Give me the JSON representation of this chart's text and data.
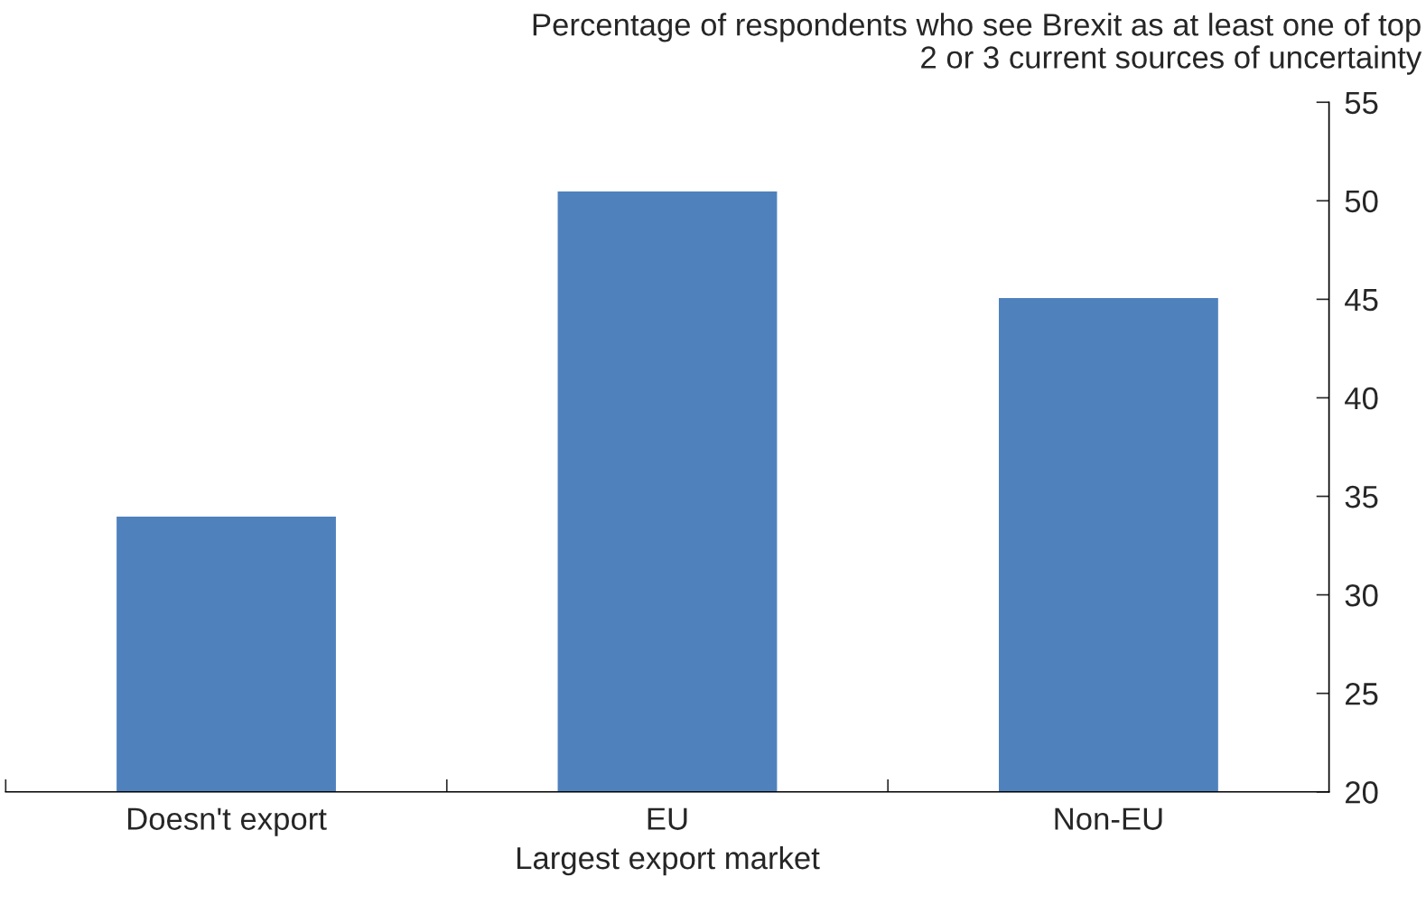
{
  "chart_data": {
    "type": "bar",
    "ylabel": "Percentage of respondents who see Brexit as at least one of top\n2 or 3 current sources of uncertainty",
    "xlabel": "Largest export market",
    "categories": [
      "Doesn't export",
      "EU",
      "Non-EU"
    ],
    "values": [
      34,
      50.5,
      45.1
    ],
    "color": "#4f81bd",
    "ylim": [
      20,
      55
    ],
    "yticks": [
      20,
      25,
      30,
      35,
      40,
      45,
      50,
      55
    ],
    "grid": false
  }
}
